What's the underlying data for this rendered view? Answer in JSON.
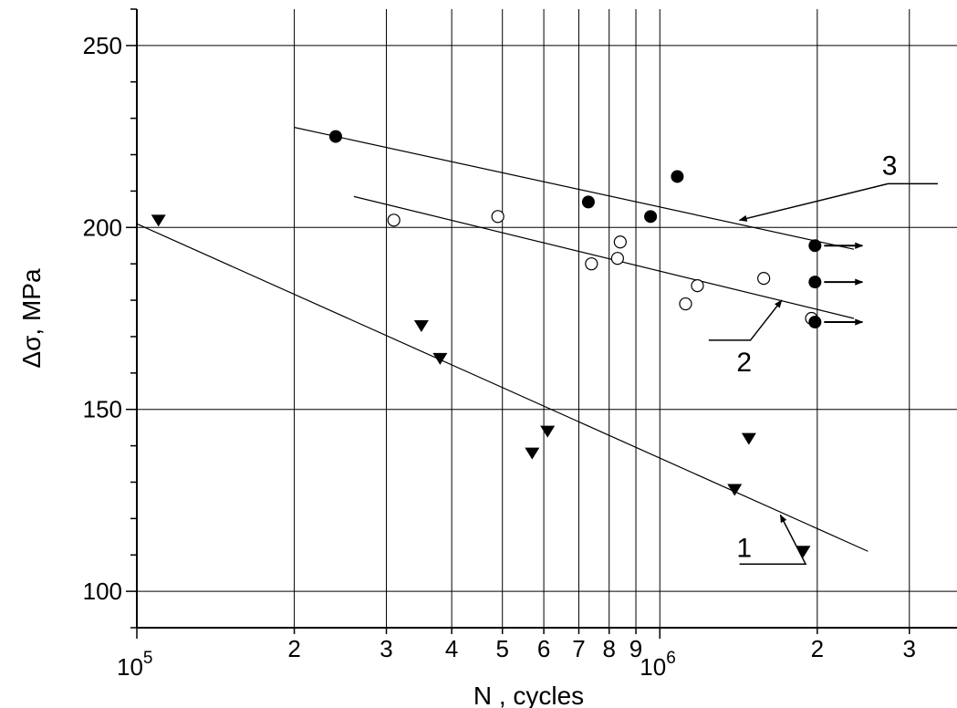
{
  "chart_data": {
    "type": "scatter",
    "xlabel": "N , cycles",
    "ylabel": "Δσ, MPa",
    "x_scale": "log",
    "xlim": [
      100000,
      3700000
    ],
    "ylim": [
      90,
      260
    ],
    "grid": true,
    "x_major_ticks": [
      {
        "value": 100000,
        "base": "10",
        "exp": "5"
      },
      {
        "value": 1000000,
        "base": "10",
        "exp": "6"
      }
    ],
    "x_minor_ticks": [
      {
        "value": 200000,
        "label": "2"
      },
      {
        "value": 300000,
        "label": "3"
      },
      {
        "value": 400000,
        "label": "4"
      },
      {
        "value": 500000,
        "label": "5"
      },
      {
        "value": 600000,
        "label": "6"
      },
      {
        "value": 700000,
        "label": "7"
      },
      {
        "value": 800000,
        "label": "8"
      },
      {
        "value": 900000,
        "label": "9"
      },
      {
        "value": 2000000,
        "label": "2"
      },
      {
        "value": 3000000,
        "label": "3"
      }
    ],
    "y_ticks": [
      100,
      150,
      200,
      250
    ],
    "y_tick_labels": [
      "100",
      "150",
      "200",
      "250"
    ],
    "series": [
      {
        "id": "1",
        "marker": "triangle-down",
        "points": [
          {
            "x": 110000,
            "y": 202
          },
          {
            "x": 350000,
            "y": 173
          },
          {
            "x": 380000,
            "y": 164
          },
          {
            "x": 570000,
            "y": 138
          },
          {
            "x": 610000,
            "y": 144
          },
          {
            "x": 1390000,
            "y": 128
          },
          {
            "x": 1480000,
            "y": 142
          },
          {
            "x": 1880000,
            "y": 111
          }
        ],
        "fit_line": [
          {
            "x": 100000,
            "y": 201
          },
          {
            "x": 2500000,
            "y": 111
          }
        ]
      },
      {
        "id": "2",
        "marker": "circle-open",
        "points": [
          {
            "x": 310000,
            "y": 202
          },
          {
            "x": 490000,
            "y": 203
          },
          {
            "x": 740000,
            "y": 190
          },
          {
            "x": 830000,
            "y": 191.5
          },
          {
            "x": 840000,
            "y": 196
          },
          {
            "x": 1120000,
            "y": 179
          },
          {
            "x": 1180000,
            "y": 184
          },
          {
            "x": 1580000,
            "y": 186
          },
          {
            "x": 1950000,
            "y": 175
          }
        ],
        "fit_line": [
          {
            "x": 260000,
            "y": 208.5
          },
          {
            "x": 2350000,
            "y": 175
          }
        ]
      },
      {
        "id": "3",
        "marker": "circle-filled",
        "points": [
          {
            "x": 240000,
            "y": 225
          },
          {
            "x": 730000,
            "y": 207
          },
          {
            "x": 960000,
            "y": 203
          },
          {
            "x": 1080000,
            "y": 214
          },
          {
            "x": 1980000,
            "y": 195,
            "runout": true
          },
          {
            "x": 1980000,
            "y": 185,
            "runout": true
          },
          {
            "x": 1980000,
            "y": 174,
            "runout": true
          }
        ],
        "fit_line": [
          {
            "x": 200000,
            "y": 227.5
          },
          {
            "x": 2350000,
            "y": 194
          }
        ]
      }
    ],
    "annotations": [
      {
        "text": "1",
        "for_series": "1",
        "x": 1450000,
        "y": 112,
        "leader_start": {
          "x": 1420000,
          "y": 107.5
        },
        "leader_elbow": {
          "x": 1900000,
          "y": 107.5
        },
        "arrow_tip": {
          "x": 1700000,
          "y": 121
        }
      },
      {
        "text": "2",
        "for_series": "2",
        "x": 1450000,
        "y": 163,
        "leader_start": {
          "x": 1240000,
          "y": 169
        },
        "leader_elbow": {
          "x": 1490000,
          "y": 169
        },
        "arrow_tip": {
          "x": 1710000,
          "y": 180
        }
      },
      {
        "text": "3",
        "for_series": "3",
        "x": 2750000,
        "y": 217,
        "leader_start": {
          "x": 3400000,
          "y": 212
        },
        "leader_elbow": {
          "x": 2730000,
          "y": 212
        },
        "arrow_tip": {
          "x": 1420000,
          "y": 202
        }
      }
    ]
  }
}
